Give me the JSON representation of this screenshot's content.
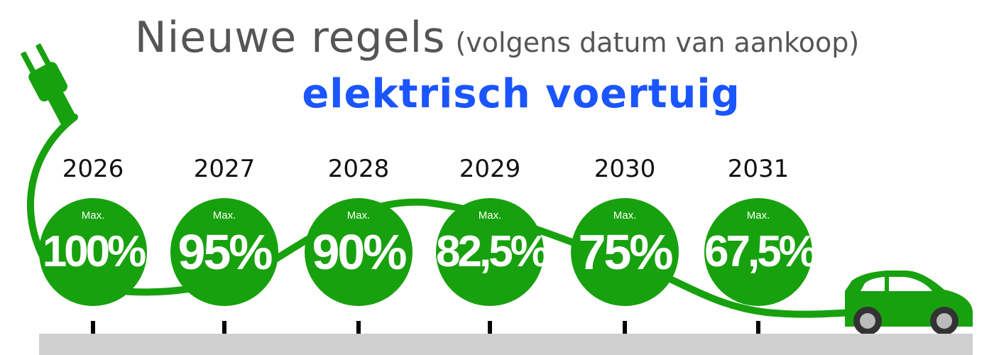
{
  "title": "Nieuwe regels",
  "title_note": "(volgens datum van aankoop)",
  "subtitle": "elektrisch voertuig",
  "colors": {
    "green": "#18a10e",
    "blue": "#1a55ff",
    "title_gray": "#555555",
    "road_gray": "#cfcfcf"
  },
  "steps": [
    {
      "year": "2026",
      "max_label": "Max.",
      "percent": "100%"
    },
    {
      "year": "2027",
      "max_label": "Max.",
      "percent": "95%"
    },
    {
      "year": "2028",
      "max_label": "Max.",
      "percent": "90%"
    },
    {
      "year": "2029",
      "max_label": "Max.",
      "percent": "82,5%"
    },
    {
      "year": "2030",
      "max_label": "Max.",
      "percent": "75%"
    },
    {
      "year": "2031",
      "max_label": "Max.",
      "percent": "67,5%"
    }
  ],
  "icons": {
    "plug": "plug-icon",
    "car": "car-icon"
  }
}
